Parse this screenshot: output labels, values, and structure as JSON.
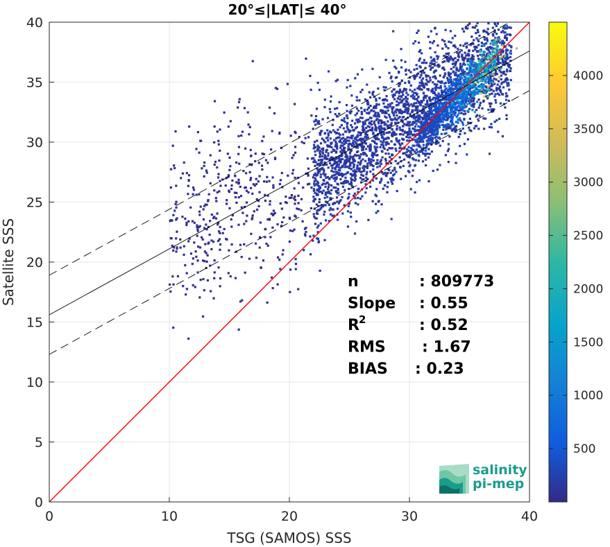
{
  "chart_data": {
    "type": "heatmap",
    "title": "20°≤|LAT|≤ 40°",
    "xlabel": "TSG (SAMOS) SSS",
    "ylabel": "Satellite SSS",
    "xlim": [
      0,
      40
    ],
    "ylim": [
      0,
      40
    ],
    "xticks": [
      "0",
      "10",
      "20",
      "30",
      "40"
    ],
    "yticks": [
      "0",
      "5",
      "10",
      "15",
      "20",
      "25",
      "30",
      "35",
      "40"
    ],
    "grid": true,
    "colormap": "parula",
    "colorbar": {
      "range": [
        0,
        4500
      ],
      "ticks": [
        "500",
        "1000",
        "1500",
        "2000",
        "2500",
        "3000",
        "3500",
        "4000"
      ],
      "tick_values": [
        500,
        1000,
        1500,
        2000,
        2500,
        3000,
        3500,
        4000
      ]
    },
    "density_core": [
      {
        "x": 35.5,
        "y": 35.0,
        "count": 4200
      },
      {
        "x": 34.0,
        "y": 33.5,
        "count": 2000
      },
      {
        "x": 32.0,
        "y": 32.0,
        "count": 700
      },
      {
        "x": 30.0,
        "y": 31.0,
        "count": 350
      },
      {
        "x": 27.0,
        "y": 28.0,
        "count": 150
      }
    ],
    "identity_line": {
      "slope": 1,
      "intercept": 0,
      "color": "#ff0000"
    },
    "regression_line": {
      "slope": 0.55,
      "intercept": 15.6,
      "color": "#000000"
    },
    "confidence_lines": [
      {
        "slope": 0.55,
        "intercept": 18.9
      },
      {
        "slope": 0.55,
        "intercept": 12.3
      }
    ],
    "stats": [
      {
        "label": "n",
        "value": ": 809773"
      },
      {
        "label": "Slope",
        "value": ": 0.55"
      },
      {
        "label": "R",
        "sup": "2",
        "value": ": 0.52"
      },
      {
        "label": "RMS",
        "value": ": 1.67"
      },
      {
        "label": "BIAS",
        "value": ": 0.23"
      }
    ]
  },
  "logo": {
    "line1": "salinity",
    "line2": "pi-mep",
    "colors": [
      "#1a9c8c",
      "#6fc7a6",
      "#a8dcc6"
    ]
  }
}
